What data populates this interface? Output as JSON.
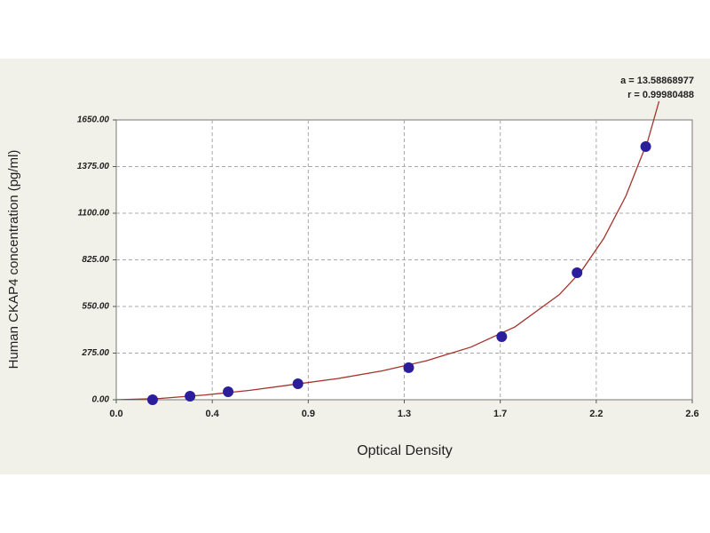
{
  "chart_data": {
    "type": "scatter",
    "xlabel": "Optical Density",
    "ylabel": "Human CKAP4 concentration (pg/ml)",
    "annotations": [
      "a = 13.58868977",
      "r = 0.99980488"
    ],
    "xlim": [
      0,
      2.6
    ],
    "ylim": [
      0,
      1650
    ],
    "xticks": [
      {
        "value": 0,
        "label": "0.0"
      },
      {
        "value": 0.4333,
        "label": "0.4"
      },
      {
        "value": 0.8667,
        "label": "0.9"
      },
      1.3,
      {
        "value": 1.7333,
        "label": "1.7"
      },
      {
        "value": 2.1667,
        "label": "2.2"
      },
      2.6
    ],
    "yticks": [
      {
        "value": 0,
        "label": "0.00"
      },
      {
        "value": 275,
        "label": "275.00"
      },
      {
        "value": 550,
        "label": "550.00"
      },
      {
        "value": 825,
        "label": "825.00"
      },
      {
        "value": 1100,
        "label": "1100.00"
      },
      {
        "value": 1375,
        "label": "1375.00"
      },
      {
        "value": 1650,
        "label": "1650.00"
      }
    ],
    "grid": true,
    "points": {
      "color": "#2b1d9c",
      "x": [
        0.164,
        0.333,
        0.505,
        0.82,
        1.32,
        1.74,
        2.08,
        2.39
      ],
      "y": [
        0,
        21,
        47,
        94,
        189,
        372,
        749,
        1493
      ]
    },
    "curve": {
      "color": "#a3342c",
      "x": [
        0,
        0.2,
        0.4,
        0.6,
        0.8,
        1.0,
        1.2,
        1.4,
        1.6,
        1.8,
        2.0,
        2.1,
        2.2,
        2.3,
        2.4,
        2.45
      ],
      "y": [
        0,
        8,
        28,
        55,
        90,
        125,
        170,
        230,
        310,
        430,
        620,
        760,
        950,
        1200,
        1530,
        1760
      ]
    }
  }
}
